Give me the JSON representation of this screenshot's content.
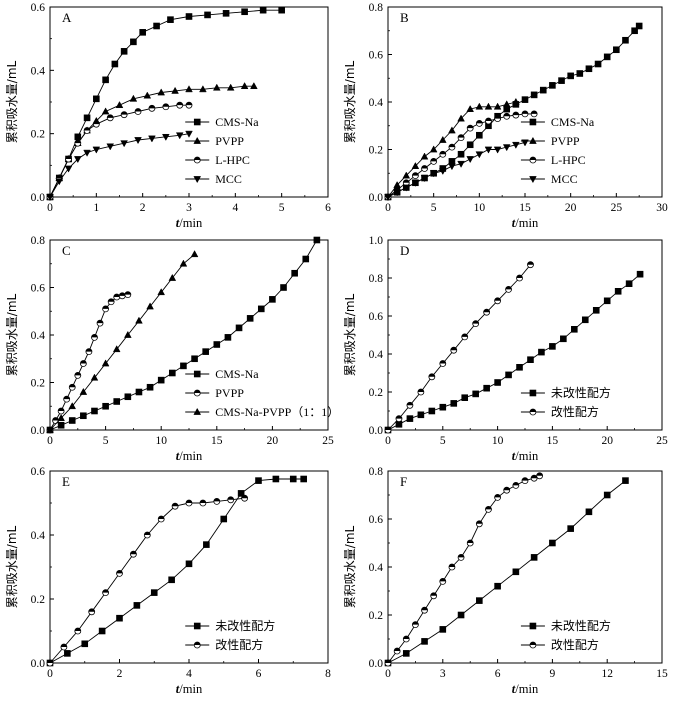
{
  "chart_data": [
    {
      "type": "line",
      "panel_label": "A",
      "xlabel_var": "t",
      "xlabel_unit": "/min",
      "ylabel": "累积吸水量/mL",
      "xlim": [
        0,
        6
      ],
      "ylim": [
        0,
        0.6
      ],
      "xticks": [
        0,
        1,
        2,
        3,
        4,
        5,
        6
      ],
      "yticks": [
        0,
        0.2,
        0.4,
        0.6
      ],
      "legend_position": "bottom-right",
      "series": [
        {
          "name": "CMS-Na",
          "marker": "square",
          "x": [
            0,
            0.2,
            0.4,
            0.6,
            0.8,
            1.0,
            1.2,
            1.4,
            1.6,
            1.8,
            2.0,
            2.3,
            2.6,
            3.0,
            3.4,
            3.8,
            4.2,
            4.6,
            5.0
          ],
          "y": [
            0,
            0.06,
            0.12,
            0.19,
            0.25,
            0.31,
            0.37,
            0.42,
            0.46,
            0.49,
            0.52,
            0.54,
            0.56,
            0.57,
            0.575,
            0.58,
            0.585,
            0.59,
            0.59
          ]
        },
        {
          "name": "PVPP",
          "marker": "triangle-up",
          "x": [
            0,
            0.2,
            0.4,
            0.6,
            0.8,
            1.0,
            1.2,
            1.5,
            1.8,
            2.1,
            2.4,
            2.7,
            3.0,
            3.3,
            3.6,
            3.9,
            4.2,
            4.4
          ],
          "y": [
            0,
            0.06,
            0.12,
            0.17,
            0.21,
            0.24,
            0.27,
            0.29,
            0.31,
            0.32,
            0.33,
            0.335,
            0.34,
            0.34,
            0.345,
            0.345,
            0.35,
            0.35
          ]
        },
        {
          "name": "L-HPC",
          "marker": "half-circle",
          "x": [
            0,
            0.2,
            0.4,
            0.6,
            0.8,
            1.0,
            1.3,
            1.6,
            1.9,
            2.2,
            2.5,
            2.8,
            3.0
          ],
          "y": [
            0,
            0.06,
            0.12,
            0.17,
            0.21,
            0.23,
            0.25,
            0.26,
            0.27,
            0.28,
            0.285,
            0.29,
            0.29
          ]
        },
        {
          "name": "MCC",
          "marker": "triangle-down",
          "x": [
            0,
            0.2,
            0.4,
            0.6,
            0.8,
            1.0,
            1.3,
            1.6,
            1.9,
            2.2,
            2.5,
            2.8,
            3.0
          ],
          "y": [
            0,
            0.05,
            0.09,
            0.12,
            0.14,
            0.15,
            0.16,
            0.17,
            0.18,
            0.185,
            0.19,
            0.195,
            0.2
          ]
        }
      ]
    },
    {
      "type": "line",
      "panel_label": "B",
      "xlabel_var": "t",
      "xlabel_unit": "/min",
      "ylabel": "累积吸水量/mL",
      "xlim": [
        0,
        30
      ],
      "ylim": [
        0,
        0.8
      ],
      "xticks": [
        0,
        5,
        10,
        15,
        20,
        25,
        30
      ],
      "yticks": [
        0,
        0.2,
        0.4,
        0.6,
        0.8
      ],
      "legend_position": "bottom-right",
      "series": [
        {
          "name": "CMS-Na",
          "marker": "square",
          "x": [
            0,
            1,
            2,
            3,
            4,
            5,
            6,
            7,
            8,
            9,
            10,
            11,
            12,
            13,
            14,
            15,
            16,
            17,
            18,
            19,
            20,
            21,
            22,
            23,
            24,
            25,
            26,
            27,
            27.5
          ],
          "y": [
            0,
            0.02,
            0.04,
            0.06,
            0.08,
            0.1,
            0.12,
            0.15,
            0.18,
            0.22,
            0.26,
            0.3,
            0.34,
            0.37,
            0.39,
            0.41,
            0.43,
            0.45,
            0.47,
            0.49,
            0.51,
            0.52,
            0.54,
            0.56,
            0.59,
            0.62,
            0.66,
            0.7,
            0.72
          ]
        },
        {
          "name": "PVPP",
          "marker": "triangle-up",
          "x": [
            0,
            1,
            2,
            3,
            4,
            5,
            6,
            7,
            8,
            9,
            10,
            11,
            12,
            13,
            14
          ],
          "y": [
            0,
            0.05,
            0.09,
            0.13,
            0.17,
            0.2,
            0.24,
            0.28,
            0.33,
            0.37,
            0.38,
            0.38,
            0.38,
            0.39,
            0.4
          ]
        },
        {
          "name": "L-HPC",
          "marker": "half-circle",
          "x": [
            0,
            1,
            2,
            3,
            4,
            5,
            6,
            7,
            8,
            9,
            10,
            11,
            12,
            13,
            14,
            15,
            16
          ],
          "y": [
            0,
            0.03,
            0.06,
            0.09,
            0.12,
            0.15,
            0.18,
            0.21,
            0.25,
            0.29,
            0.31,
            0.32,
            0.33,
            0.34,
            0.345,
            0.35,
            0.35
          ]
        },
        {
          "name": "MCC",
          "marker": "triangle-down",
          "x": [
            0,
            1,
            2,
            3,
            4,
            5,
            6,
            7,
            8,
            9,
            10,
            11,
            12,
            13,
            14,
            15
          ],
          "y": [
            0,
            0.02,
            0.04,
            0.06,
            0.08,
            0.1,
            0.11,
            0.13,
            0.14,
            0.16,
            0.18,
            0.2,
            0.2,
            0.21,
            0.22,
            0.23
          ]
        }
      ]
    },
    {
      "type": "line",
      "panel_label": "C",
      "xlabel_var": "t",
      "xlabel_unit": "/min",
      "ylabel": "累积吸水量/mL",
      "xlim": [
        0,
        25
      ],
      "ylim": [
        0,
        0.8
      ],
      "xticks": [
        0,
        5,
        10,
        15,
        20,
        25
      ],
      "yticks": [
        0,
        0.2,
        0.4,
        0.6,
        0.8
      ],
      "legend_position": "bottom-right",
      "series": [
        {
          "name": "CMS-Na",
          "marker": "square",
          "x": [
            0,
            1,
            2,
            3,
            4,
            5,
            6,
            7,
            8,
            9,
            10,
            11,
            12,
            13,
            14,
            15,
            16,
            17,
            18,
            19,
            20,
            21,
            22,
            23,
            24
          ],
          "y": [
            0,
            0.02,
            0.04,
            0.06,
            0.08,
            0.1,
            0.12,
            0.14,
            0.16,
            0.18,
            0.21,
            0.24,
            0.27,
            0.3,
            0.33,
            0.36,
            0.39,
            0.43,
            0.47,
            0.51,
            0.55,
            0.6,
            0.66,
            0.72,
            0.8
          ]
        },
        {
          "name": "PVPP",
          "marker": "half-circle",
          "x": [
            0,
            0.5,
            1,
            1.5,
            2,
            2.5,
            3,
            3.5,
            4,
            4.5,
            5,
            5.5,
            6,
            6.5,
            7
          ],
          "y": [
            0,
            0.04,
            0.08,
            0.13,
            0.18,
            0.23,
            0.28,
            0.33,
            0.39,
            0.45,
            0.51,
            0.54,
            0.56,
            0.565,
            0.57
          ]
        },
        {
          "name": "CMS-Na-PVPP（1：1）",
          "marker": "triangle-up",
          "x": [
            0,
            1,
            2,
            3,
            4,
            5,
            6,
            7,
            8,
            9,
            10,
            11,
            12,
            13
          ],
          "y": [
            0,
            0.05,
            0.1,
            0.16,
            0.22,
            0.28,
            0.34,
            0.4,
            0.46,
            0.52,
            0.58,
            0.64,
            0.7,
            0.74
          ]
        }
      ]
    },
    {
      "type": "line",
      "panel_label": "D",
      "xlabel_var": "t",
      "xlabel_unit": "/min",
      "ylabel": "累积吸水量/mL",
      "xlim": [
        0,
        25
      ],
      "ylim": [
        0,
        1.0
      ],
      "xticks": [
        0,
        5,
        10,
        15,
        20,
        25
      ],
      "yticks": [
        0,
        0.2,
        0.4,
        0.6,
        0.8,
        1.0
      ],
      "legend_position": "bottom-right",
      "series": [
        {
          "name": "未改性配方",
          "marker": "square",
          "x": [
            0,
            1,
            2,
            3,
            4,
            5,
            6,
            7,
            8,
            9,
            10,
            11,
            12,
            13,
            14,
            15,
            16,
            17,
            18,
            19,
            20,
            21,
            22,
            23
          ],
          "y": [
            0,
            0.03,
            0.06,
            0.08,
            0.1,
            0.12,
            0.14,
            0.17,
            0.19,
            0.22,
            0.25,
            0.29,
            0.33,
            0.37,
            0.41,
            0.44,
            0.48,
            0.53,
            0.58,
            0.63,
            0.68,
            0.73,
            0.77,
            0.82
          ]
        },
        {
          "name": "改性配方",
          "marker": "half-circle",
          "x": [
            0,
            1,
            2,
            3,
            4,
            5,
            6,
            7,
            8,
            9,
            10,
            11,
            12,
            13
          ],
          "y": [
            0,
            0.06,
            0.13,
            0.2,
            0.28,
            0.35,
            0.42,
            0.49,
            0.56,
            0.62,
            0.68,
            0.74,
            0.8,
            0.87
          ]
        }
      ]
    },
    {
      "type": "line",
      "panel_label": "E",
      "xlabel_var": "t",
      "xlabel_unit": "/min",
      "ylabel": "累积吸水量/mL",
      "xlim": [
        0,
        8
      ],
      "ylim": [
        0,
        0.6
      ],
      "xticks": [
        0,
        2,
        4,
        6,
        8
      ],
      "yticks": [
        0,
        0.2,
        0.4,
        0.6
      ],
      "legend_position": "bottom-right",
      "series": [
        {
          "name": "未改性配方",
          "marker": "square",
          "x": [
            0,
            0.5,
            1,
            1.5,
            2,
            2.5,
            3,
            3.5,
            4,
            4.5,
            5,
            5.5,
            6,
            6.5,
            7,
            7.3
          ],
          "y": [
            0,
            0.03,
            0.06,
            0.1,
            0.14,
            0.18,
            0.22,
            0.26,
            0.31,
            0.37,
            0.45,
            0.53,
            0.57,
            0.575,
            0.575,
            0.575
          ]
        },
        {
          "name": "改性配方",
          "marker": "half-circle",
          "x": [
            0,
            0.4,
            0.8,
            1.2,
            1.6,
            2,
            2.4,
            2.8,
            3.2,
            3.6,
            4,
            4.4,
            4.8,
            5.2,
            5.6
          ],
          "y": [
            0,
            0.05,
            0.1,
            0.16,
            0.22,
            0.28,
            0.34,
            0.4,
            0.45,
            0.49,
            0.5,
            0.5,
            0.505,
            0.51,
            0.515
          ]
        }
      ]
    },
    {
      "type": "line",
      "panel_label": "F",
      "xlabel_var": "t",
      "xlabel_unit": "/min",
      "ylabel": "累积吸水量/mL",
      "xlim": [
        0,
        15
      ],
      "ylim": [
        0,
        0.8
      ],
      "xticks": [
        0,
        3,
        6,
        9,
        12,
        15
      ],
      "yticks": [
        0,
        0.2,
        0.4,
        0.6,
        0.8
      ],
      "legend_position": "bottom-right",
      "series": [
        {
          "name": "未改性配方",
          "marker": "square",
          "x": [
            0,
            1,
            2,
            3,
            4,
            5,
            6,
            7,
            8,
            9,
            10,
            11,
            12,
            13
          ],
          "y": [
            0,
            0.04,
            0.09,
            0.14,
            0.2,
            0.26,
            0.32,
            0.38,
            0.44,
            0.5,
            0.56,
            0.63,
            0.7,
            0.76
          ]
        },
        {
          "name": "改性配方",
          "marker": "half-circle",
          "x": [
            0,
            0.5,
            1,
            1.5,
            2,
            2.5,
            3,
            3.5,
            4,
            4.5,
            5,
            5.5,
            6,
            6.5,
            7,
            7.5,
            8,
            8.3
          ],
          "y": [
            0,
            0.05,
            0.1,
            0.16,
            0.22,
            0.28,
            0.34,
            0.4,
            0.44,
            0.5,
            0.58,
            0.64,
            0.69,
            0.72,
            0.74,
            0.76,
            0.77,
            0.78
          ]
        }
      ]
    }
  ]
}
